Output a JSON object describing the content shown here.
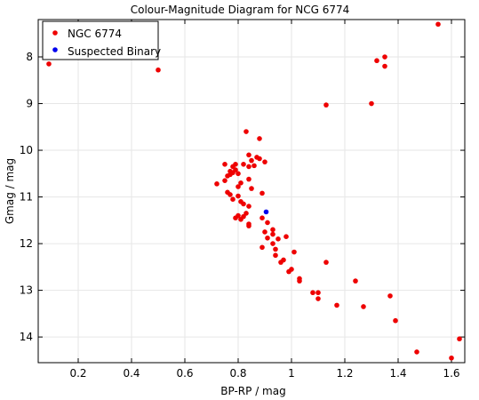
{
  "colors": {
    "background": "#ffffff",
    "frame": "#000000",
    "grid": "#e6e6e6",
    "series_main": "#ee0000",
    "series_binary": "#0000ee"
  },
  "chart_data": {
    "type": "scatter",
    "title": "Colour-Magnitude Diagram for NCG 6774",
    "xlabel": "BP-RP / mag",
    "ylabel": "Gmag / mag",
    "xlim": [
      0.05,
      1.65
    ],
    "ylim": [
      14.55,
      7.2
    ],
    "y_inverted": true,
    "grid": true,
    "legend_position": "top-left",
    "x_ticks": [
      "0.2",
      "0.4",
      "0.6",
      "0.8",
      "1",
      "1.2",
      "1.4",
      "1.6"
    ],
    "x_tick_values": [
      0.2,
      0.4,
      0.6,
      0.8,
      1.0,
      1.2,
      1.4,
      1.6
    ],
    "y_ticks": [
      "8",
      "9",
      "10",
      "11",
      "12",
      "13",
      "14"
    ],
    "y_tick_values": [
      8,
      9,
      10,
      11,
      12,
      13,
      14
    ],
    "series": [
      {
        "name": "NGC 6774",
        "color": "#ee0000",
        "points": [
          [
            1.55,
            7.3
          ],
          [
            0.09,
            8.15
          ],
          [
            0.5,
            8.28
          ],
          [
            1.35,
            8.0
          ],
          [
            1.32,
            8.08
          ],
          [
            1.35,
            8.2
          ],
          [
            1.13,
            9.03
          ],
          [
            1.3,
            9.0
          ],
          [
            0.83,
            9.6
          ],
          [
            0.88,
            9.75
          ],
          [
            0.84,
            10.1
          ],
          [
            0.87,
            10.15
          ],
          [
            0.88,
            10.18
          ],
          [
            0.9,
            10.25
          ],
          [
            0.85,
            10.22
          ],
          [
            0.75,
            10.3
          ],
          [
            0.79,
            10.3
          ],
          [
            0.78,
            10.35
          ],
          [
            0.82,
            10.3
          ],
          [
            0.84,
            10.35
          ],
          [
            0.86,
            10.33
          ],
          [
            0.77,
            10.45
          ],
          [
            0.78,
            10.48
          ],
          [
            0.79,
            10.42
          ],
          [
            0.8,
            10.5
          ],
          [
            0.77,
            10.52
          ],
          [
            0.76,
            10.55
          ],
          [
            0.72,
            10.72
          ],
          [
            0.75,
            10.65
          ],
          [
            0.81,
            10.7
          ],
          [
            0.84,
            10.62
          ],
          [
            0.8,
            10.78
          ],
          [
            0.85,
            10.82
          ],
          [
            0.76,
            10.9
          ],
          [
            0.77,
            10.95
          ],
          [
            0.8,
            10.98
          ],
          [
            0.78,
            11.05
          ],
          [
            0.89,
            10.92
          ],
          [
            0.81,
            11.1
          ],
          [
            0.82,
            11.15
          ],
          [
            0.84,
            11.2
          ],
          [
            0.83,
            11.35
          ],
          [
            0.8,
            11.4
          ],
          [
            0.79,
            11.45
          ],
          [
            0.82,
            11.42
          ],
          [
            0.81,
            11.48
          ],
          [
            0.84,
            11.58
          ],
          [
            0.84,
            11.62
          ],
          [
            0.89,
            11.45
          ],
          [
            0.91,
            11.55
          ],
          [
            0.93,
            11.7
          ],
          [
            0.9,
            11.75
          ],
          [
            0.93,
            11.8
          ],
          [
            0.91,
            11.88
          ],
          [
            0.95,
            11.9
          ],
          [
            0.98,
            11.85
          ],
          [
            0.93,
            12.0
          ],
          [
            0.89,
            12.08
          ],
          [
            0.94,
            12.12
          ],
          [
            0.94,
            12.25
          ],
          [
            1.01,
            12.18
          ],
          [
            0.97,
            12.35
          ],
          [
            0.96,
            12.4
          ],
          [
            0.99,
            12.6
          ],
          [
            1.0,
            12.55
          ],
          [
            1.03,
            12.75
          ],
          [
            1.03,
            12.8
          ],
          [
            1.13,
            12.4
          ],
          [
            1.24,
            12.8
          ],
          [
            1.08,
            13.05
          ],
          [
            1.1,
            13.05
          ],
          [
            1.1,
            13.18
          ],
          [
            1.37,
            13.12
          ],
          [
            1.17,
            13.32
          ],
          [
            1.27,
            13.35
          ],
          [
            1.39,
            13.65
          ],
          [
            1.47,
            14.32
          ],
          [
            1.6,
            14.45
          ],
          [
            1.63,
            14.04
          ]
        ]
      },
      {
        "name": "Suspected Binary",
        "color": "#0000ee",
        "points": [
          [
            0.905,
            11.32
          ]
        ]
      }
    ]
  }
}
